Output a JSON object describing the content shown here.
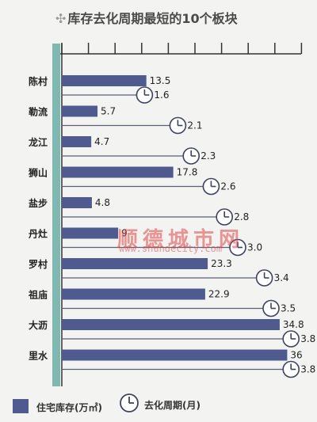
{
  "title": {
    "icon": "plus-icon",
    "text": "库存去化周期最短的10个板块"
  },
  "colors": {
    "bar": "#4f5b8f",
    "axis_teal": "#7fb8b0",
    "line": "#5a5f7a",
    "watermark": "#dc4646"
  },
  "watermark": {
    "text": "顺德城市网",
    "url": "www.shundecity.com"
  },
  "legend": {
    "bar_label": "住宅库存(万㎡)",
    "clock_label": "去化周期(月)",
    "clock_icon": "clock-icon"
  },
  "chart_data": {
    "type": "bar",
    "orientation": "horizontal",
    "title": "库存去化周期最短的10个板块",
    "categories": [
      "陈村",
      "勒流",
      "龙江",
      "狮山",
      "盐步",
      "丹灶",
      "罗村",
      "祖庙",
      "大沥",
      "里水"
    ],
    "series": [
      {
        "name": "住宅库存(万㎡)",
        "values": [
          13.5,
          5.7,
          4.7,
          17.8,
          4.8,
          9,
          23.3,
          22.9,
          34.8,
          36
        ]
      },
      {
        "name": "去化周期(月)",
        "values": [
          1.6,
          2.1,
          2.3,
          2.6,
          2.8,
          3.0,
          3.4,
          3.5,
          3.8,
          3.8
        ]
      }
    ],
    "value_labels": {
      "stock": [
        "13.5",
        "5.7",
        "4.7",
        "17.8",
        "4.8",
        "9",
        "23.3",
        "22.9",
        "34.8",
        "36"
      ],
      "cycle": [
        "1.6",
        "2.1",
        "2.3",
        "2.6",
        "2.8",
        "3.0",
        "3.4",
        "3.5",
        "3.8",
        "3.8"
      ]
    },
    "grid": false,
    "legend_position": "bottom"
  }
}
